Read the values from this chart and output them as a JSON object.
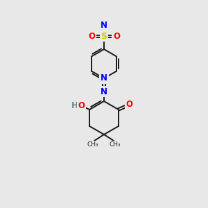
{
  "background_color": "#e8e8e8",
  "bond_color": "#1a1a1a",
  "atom_colors": {
    "N": "#0000ff",
    "O": "#ff0000",
    "S": "#cccc00",
    "H": "#5f9090",
    "C": "#1a1a1a"
  },
  "figsize": [
    3.0,
    3.0
  ],
  "dpi": 100
}
